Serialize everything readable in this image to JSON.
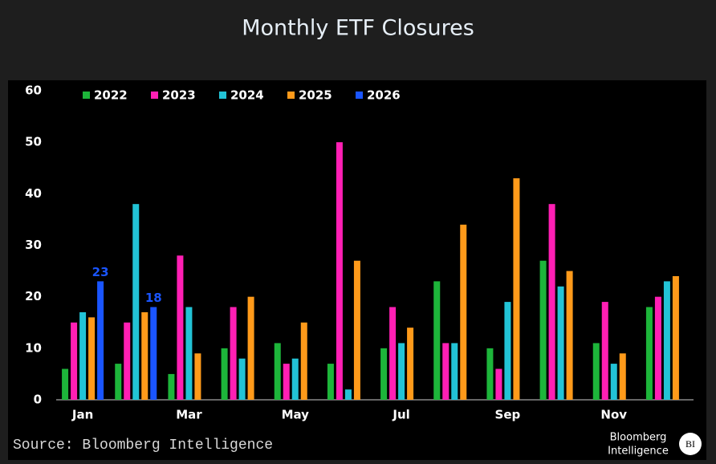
{
  "chart_data": {
    "type": "bar",
    "title": "Monthly ETF Closures",
    "categories": [
      "Jan",
      null,
      "Mar",
      null,
      "May",
      null,
      "Jul",
      null,
      "Sep",
      null,
      "Nov",
      null
    ],
    "series": [
      {
        "name": "2022",
        "color": "#1db53a",
        "values": [
          6,
          7,
          5,
          10,
          11,
          7,
          10,
          23,
          10,
          27,
          11,
          18
        ]
      },
      {
        "name": "2023",
        "color": "#ff1fb4",
        "values": [
          15,
          15,
          28,
          18,
          7,
          50,
          18,
          11,
          6,
          38,
          19,
          20
        ]
      },
      {
        "name": "2024",
        "color": "#22c3d6",
        "values": [
          17,
          38,
          18,
          8,
          8,
          2,
          11,
          11,
          19,
          22,
          7,
          23
        ]
      },
      {
        "name": "2025",
        "color": "#ff9a1a",
        "values": [
          16,
          17,
          9,
          20,
          15,
          27,
          14,
          34,
          43,
          25,
          9,
          24
        ]
      },
      {
        "name": "2026",
        "color": "#1a55ff",
        "values": [
          23,
          18,
          null,
          null,
          null,
          null,
          null,
          null,
          null,
          null,
          null,
          null
        ],
        "data_labels": true
      }
    ],
    "ylim": [
      0,
      60
    ],
    "yticks": [
      0,
      10,
      20,
      30,
      40,
      50,
      60
    ],
    "grid": false,
    "legend": "top-left",
    "source": "Source: Bloomberg Intelligence",
    "logo": [
      "Bloomberg",
      "Intelligence"
    ],
    "logo_mark": "BI"
  }
}
